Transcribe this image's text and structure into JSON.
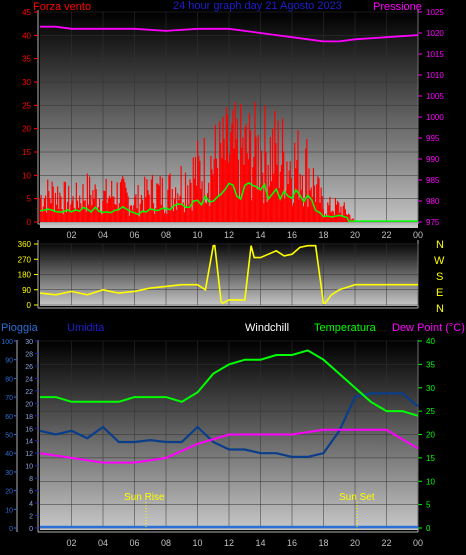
{
  "top_header": {
    "left_label": "Forza vento",
    "title": "24 hour graph day  21 Agosto 2023",
    "right_label": "Pressione"
  },
  "direction_labels": [
    "N",
    "W",
    "S",
    "E",
    "N"
  ],
  "bottom_header": {
    "pioggia": "Pioggia",
    "umidita": "Umidita",
    "windchill": "Windchill",
    "temperatura": "Temperatura",
    "dewpoint": "Dew Point (°C)"
  },
  "markers": {
    "sunrise": "Sun Rise",
    "sunset": "Sun Set"
  },
  "colors": {
    "wind": "#ff0000",
    "gust_avg": "#00ff00",
    "pressure": "#ff00ff",
    "direction": "#ffff00",
    "temperature": "#00ff00",
    "humidity": "#0a3d8a",
    "dewpoint": "#ff00ff",
    "rain": "#2a6fd8",
    "header_blue": "#1f1fd0",
    "plot_top": "#000000",
    "plot_bottom": "#c8c8c8"
  },
  "chart_data": [
    {
      "type": "area",
      "x_tick_labels": [
        "02",
        "04",
        "06",
        "08",
        "10",
        "12",
        "14",
        "16",
        "18",
        "20",
        "22",
        "00"
      ],
      "ylim": [
        0,
        45
      ],
      "y_left_ticks": [
        0,
        5,
        10,
        15,
        20,
        25,
        30,
        35,
        40,
        45
      ],
      "y_right_label": "Pressione",
      "y_right_lim": [
        975,
        1025
      ],
      "y_right_ticks": [
        975,
        980,
        985,
        990,
        995,
        1000,
        1005,
        1010,
        1015,
        1020,
        1025
      ],
      "series": [
        {
          "name": "Forza vento",
          "hours": [
            0,
            1,
            2,
            3,
            4,
            5,
            6,
            7,
            8,
            9,
            10,
            11,
            12,
            13,
            14,
            15,
            16,
            17,
            18,
            19,
            19.5,
            20,
            24
          ],
          "values": [
            5,
            6,
            4,
            6,
            5,
            6,
            4,
            6,
            6,
            8,
            10,
            12,
            14,
            14,
            14,
            14,
            12,
            11,
            3,
            3,
            2,
            0,
            0
          ]
        },
        {
          "name": "Pressione",
          "hours": [
            0,
            1,
            2,
            4,
            6,
            8,
            10,
            12,
            13,
            14,
            15,
            16,
            17,
            18,
            19,
            20,
            22,
            24
          ],
          "values": [
            1021.5,
            1021.5,
            1021,
            1021,
            1021,
            1020.5,
            1021,
            1021,
            1020.5,
            1020,
            1019.5,
            1019,
            1018.5,
            1018,
            1018,
            1018.5,
            1019,
            1019.5
          ]
        }
      ]
    },
    {
      "type": "line",
      "name": "wind direction",
      "ylim": [
        0,
        360
      ],
      "y_ticks": [
        0,
        90,
        180,
        270,
        360
      ],
      "hours": [
        0,
        1,
        2,
        3,
        4,
        5,
        6,
        7,
        8,
        9,
        10,
        10.5,
        11,
        11.1,
        11.5,
        11.6,
        12,
        13,
        13.4,
        13.6,
        14,
        14.5,
        15,
        15.5,
        16,
        16.5,
        17,
        17.5,
        18,
        18.1,
        18.5,
        19,
        20,
        21,
        22,
        23,
        24
      ],
      "values": [
        70,
        60,
        80,
        60,
        90,
        70,
        80,
        100,
        110,
        120,
        120,
        90,
        350,
        350,
        20,
        10,
        30,
        30,
        350,
        280,
        280,
        300,
        320,
        290,
        300,
        340,
        350,
        350,
        10,
        10,
        60,
        90,
        120,
        120,
        120,
        120,
        120
      ]
    },
    {
      "type": "line",
      "y_left_ticks": [
        0,
        10,
        20,
        30,
        40,
        50,
        60,
        70,
        80,
        90,
        100
      ],
      "y_left2_ticks": [
        0,
        2,
        4,
        6,
        8,
        10,
        12,
        14,
        16,
        18,
        20,
        22,
        24,
        26,
        28,
        30
      ],
      "ylim": [
        0,
        40
      ],
      "y_right_ticks": [
        0,
        5,
        10,
        15,
        20,
        25,
        30,
        35,
        40
      ],
      "series": [
        {
          "name": "Temperatura",
          "hours": [
            0,
            1,
            2,
            3,
            4,
            5,
            6,
            7,
            8,
            9,
            10,
            11,
            12,
            13,
            14,
            15,
            16,
            17,
            18,
            19,
            20,
            21,
            22,
            23,
            24
          ],
          "values": [
            28,
            28,
            27,
            27,
            27,
            27,
            28,
            28,
            28,
            27,
            29,
            33,
            35,
            36,
            36,
            37,
            37,
            38,
            36,
            33,
            30,
            27,
            25,
            25,
            24
          ]
        },
        {
          "name": "Dew Point (°C)",
          "hours": [
            0,
            2,
            4,
            6,
            8,
            10,
            12,
            14,
            16,
            18,
            20,
            22,
            24
          ],
          "values": [
            16,
            15,
            14,
            14,
            15,
            18,
            20,
            20,
            20,
            21,
            21,
            21,
            17
          ]
        }
      ],
      "humidity": {
        "name": "Umidita",
        "hours": [
          0,
          1,
          2,
          3,
          4,
          5,
          6,
          7,
          8,
          9,
          10,
          11,
          12,
          13,
          14,
          15,
          16,
          17,
          18,
          19,
          20,
          21,
          22,
          23,
          24
        ],
        "values": [
          52,
          50,
          52,
          48,
          54,
          46,
          46,
          47,
          46,
          46,
          54,
          46,
          42,
          42,
          40,
          40,
          38,
          38,
          40,
          52,
          70,
          72,
          72,
          72,
          65
        ]
      },
      "rain": {
        "name": "Pioggia",
        "hours": [
          0,
          24
        ],
        "values": [
          0,
          0
        ]
      }
    }
  ]
}
